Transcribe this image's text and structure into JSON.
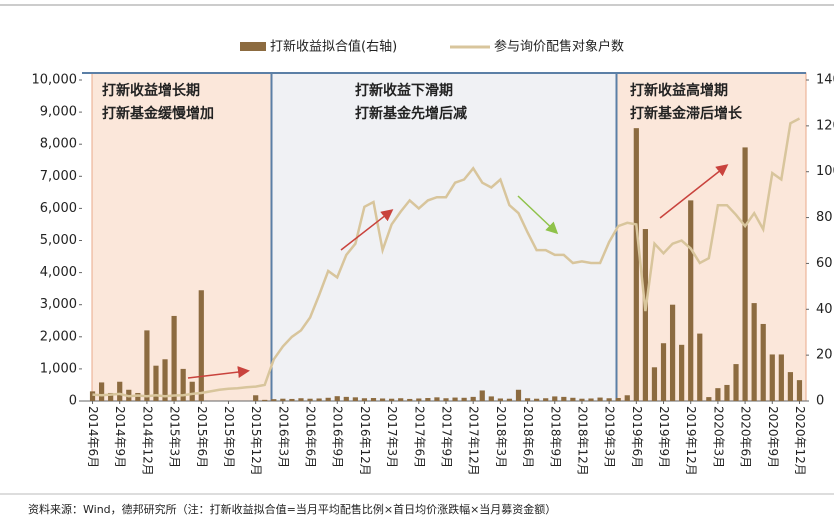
{
  "chart_data": {
    "type": "bar",
    "categories": [
      "2014年6月",
      null,
      null,
      "2014年9月",
      null,
      null,
      "2014年12月",
      null,
      null,
      "2015年3月",
      null,
      null,
      "2015年6月",
      null,
      null,
      "2015年9月",
      null,
      null,
      "2015年12月",
      null,
      null,
      "2016年3月",
      null,
      null,
      "2016年6月",
      null,
      null,
      "2016年9月",
      null,
      null,
      "2016年12月",
      null,
      null,
      "2017年3月",
      null,
      null,
      "2017年6月",
      null,
      null,
      "2017年9月",
      null,
      null,
      "2017年12月",
      null,
      null,
      "2018年3月",
      null,
      null,
      "2018年6月",
      null,
      null,
      "2018年9月",
      null,
      null,
      "2018年12月",
      null,
      null,
      "2019年3月",
      null,
      null,
      "2019年6月",
      null,
      null,
      "2019年9月",
      null,
      null,
      "2019年12月",
      null,
      null,
      "2020年3月",
      null,
      null,
      "2020年6月",
      null,
      null,
      "2020年9月",
      null,
      null,
      "2020年12月"
    ],
    "series": [
      {
        "name": "打新收益拟合值(右轴)",
        "type": "bar",
        "axis": "y2",
        "color": "#8c6b40",
        "values": [
          4.2,
          8.1,
          3.5,
          8.4,
          4.9,
          3.5,
          30.8,
          15.4,
          18.2,
          37.1,
          14,
          8.4,
          48.3,
          0,
          0,
          0,
          0,
          0,
          2.5,
          0.5,
          0.8,
          1.0,
          0.9,
          1.2,
          1.0,
          1.1,
          1.4,
          2.1,
          1.8,
          1.6,
          1.2,
          1.3,
          1.1,
          1.0,
          1.2,
          0.9,
          1.1,
          1.3,
          1.6,
          1.2,
          1.5,
          1.4,
          1.8,
          4.6,
          2.0,
          1.1,
          1.0,
          4.9,
          1.2,
          1.0,
          1.2,
          2.0,
          1.8,
          1.4,
          1.0,
          1.1,
          1.5,
          1.2,
          1.3,
          2.5,
          119,
          75,
          14.7,
          25.2,
          42,
          24.5,
          87.5,
          29.4,
          1.7,
          5.6,
          7,
          16.1,
          110.6,
          42.7,
          33.6,
          20.3,
          20.3,
          12.6,
          9.1
        ]
      },
      {
        "name": "参与询价配售对象户数",
        "type": "line",
        "axis": "y",
        "color": "#d8c59c",
        "values": [
          200,
          180,
          200,
          220,
          150,
          170,
          150,
          180,
          150,
          170,
          180,
          220,
          250,
          300,
          350,
          380,
          400,
          430,
          450,
          500,
          1300,
          1700,
          2000,
          2200,
          2600,
          3300,
          4050,
          3850,
          4550,
          4900,
          6050,
          6200,
          4700,
          5500,
          5900,
          6250,
          6000,
          6250,
          6350,
          6350,
          6800,
          6900,
          7250,
          6800,
          6650,
          6900,
          6100,
          5850,
          5250,
          4700,
          4700,
          4550,
          4550,
          4300,
          4350,
          4300,
          4300,
          4950,
          5450,
          5550,
          5500,
          2800,
          4900,
          4600,
          4900,
          5000,
          4750,
          4300,
          4450,
          6100,
          6100,
          5800,
          5450,
          5850,
          5350,
          7100,
          6900,
          8650,
          8800
        ]
      }
    ],
    "ylim": [
      0,
      10000
    ],
    "yticks": [
      0,
      {
        "value": 1000,
        "label": "1,000"
      },
      {
        "value": 2000,
        "label": "2,000"
      },
      {
        "value": 3000,
        "label": "3,000"
      },
      {
        "value": 4000,
        "label": "4,000"
      },
      {
        "value": 5000,
        "label": "5,000"
      },
      {
        "value": 6000,
        "label": "6,000"
      },
      {
        "value": 7000,
        "label": "7,000"
      },
      {
        "value": 8000,
        "label": "8,000"
      },
      {
        "value": 9000,
        "label": "9,000"
      },
      {
        "value": 10000,
        "label": "10,000"
      }
    ],
    "y2lim": [
      0,
      140
    ],
    "y2ticks": [
      0,
      20,
      40,
      60,
      80,
      100,
      120,
      140
    ],
    "legend": "top",
    "annotations": [
      [
        "打新收益增长期",
        "打新基金缓慢增加"
      ],
      [
        "打新收益下滑期",
        "打新基金先增后减"
      ],
      [
        "打新收益高增期",
        "打新基金滞后增长"
      ]
    ],
    "source": "资料来源：Wind，德邦研究所（注：打新收益拟合值=当月平均配售比例×首日均价涨跌幅×当月募资金额）"
  }
}
